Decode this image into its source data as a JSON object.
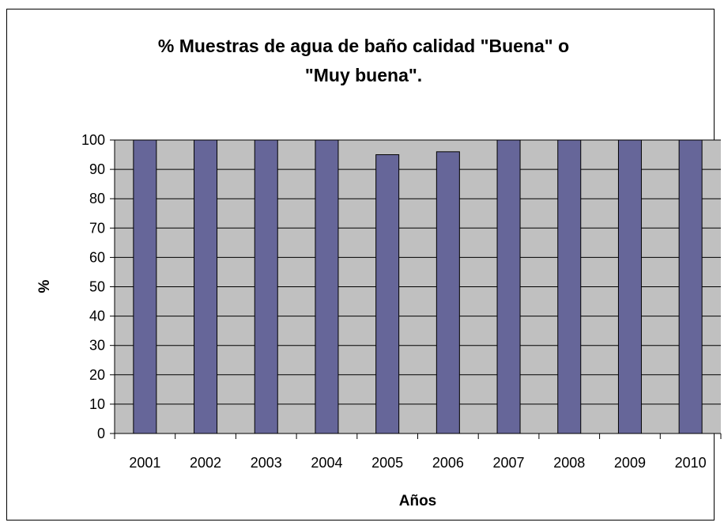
{
  "chart_data": {
    "type": "bar",
    "title_line1": "% Muestras de agua de baño calidad \"Buena\" o",
    "title_line2": "\"Muy buena\".",
    "xlabel": "Años",
    "ylabel": "%",
    "categories": [
      "2001",
      "2002",
      "2003",
      "2004",
      "2005",
      "2006",
      "2007",
      "2008",
      "2009",
      "2010"
    ],
    "values": [
      100,
      100,
      100,
      100,
      95,
      96,
      100,
      100,
      100,
      100
    ],
    "ylim": [
      0,
      100
    ],
    "yticks": [
      0,
      10,
      20,
      30,
      40,
      50,
      60,
      70,
      80,
      90,
      100
    ],
    "grid": true,
    "legend": "none",
    "colors": {
      "bar_fill": "#666699",
      "plot_background": "#c0c0c0",
      "gridline": "#000000"
    }
  }
}
